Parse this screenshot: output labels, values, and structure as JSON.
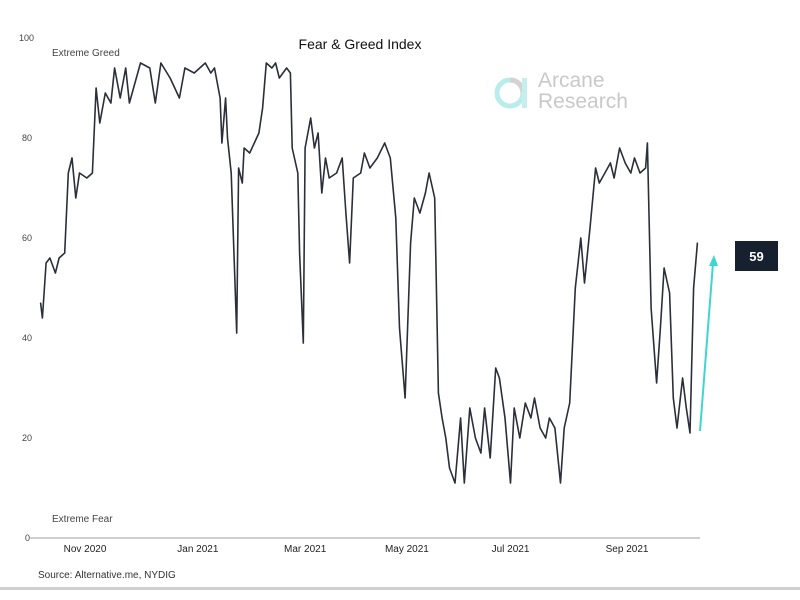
{
  "chart_data": {
    "type": "line",
    "title": "Fear & Greed Index",
    "xlabel": "",
    "ylabel": "",
    "ylim": [
      0,
      100
    ],
    "y_ticks": [
      0,
      20,
      40,
      60,
      80,
      100
    ],
    "x_unit": "days since 2020-11-01 (approx.)",
    "x_ticks": [
      {
        "label": "Nov 2020",
        "x": 0
      },
      {
        "label": "Jan 2021",
        "x": 61
      },
      {
        "label": "Mar 2021",
        "x": 119
      },
      {
        "label": "May 2021",
        "x": 174
      },
      {
        "label": "Jul 2021",
        "x": 230
      },
      {
        "label": "Sep 2021",
        "x": 293
      }
    ],
    "zone_labels": {
      "top": "Extreme Greed",
      "bottom": "Extreme Fear"
    },
    "series": [
      {
        "name": "Fear & Greed Index",
        "color": "#2a2f3a",
        "x": [
          -24,
          -23,
          -21,
          -19,
          -16,
          -14,
          -11,
          -9,
          -7,
          -5,
          -3,
          1,
          4,
          6,
          8,
          11,
          14,
          16,
          19,
          22,
          24,
          30,
          35,
          38,
          41,
          46,
          51,
          54,
          59,
          65,
          68,
          70,
          73,
          74,
          76,
          77,
          79,
          82,
          83,
          85,
          86,
          89,
          94,
          96,
          98,
          101,
          103,
          105,
          109,
          111,
          112,
          115,
          116,
          118,
          119,
          122,
          124,
          126,
          128,
          130,
          132,
          136,
          139,
          141,
          143,
          145,
          149,
          151,
          154,
          158,
          162,
          165,
          168,
          170,
          173,
          176,
          178,
          181,
          184,
          186,
          189,
          191,
          193,
          195,
          197,
          200,
          203,
          205,
          208,
          211,
          214,
          216,
          219,
          222,
          224,
          227,
          230,
          232,
          235,
          238,
          241,
          243,
          246,
          249,
          251,
          254,
          257,
          259,
          262,
          265,
          268,
          270,
          273,
          276,
          278,
          281,
          284,
          286,
          289,
          292,
          295,
          297,
          300,
          303,
          304,
          306,
          309,
          311,
          313,
          316,
          318,
          320,
          323,
          325,
          327,
          329,
          331
        ],
        "y": [
          47,
          44,
          55,
          56,
          53,
          56,
          57,
          73,
          76,
          68,
          73,
          72,
          73,
          90,
          83,
          89,
          87,
          94,
          88,
          94,
          87,
          95,
          94,
          87,
          95,
          92,
          88,
          94,
          93,
          95,
          93,
          94,
          88,
          79,
          88,
          80,
          73,
          41,
          74,
          71,
          78,
          77,
          81,
          86,
          95,
          94,
          95,
          92,
          94,
          93,
          78,
          73,
          57,
          39,
          78,
          84,
          78,
          81,
          69,
          76,
          72,
          73,
          76,
          65,
          55,
          72,
          73,
          77,
          74,
          76,
          79,
          76,
          64,
          42,
          28,
          59,
          68,
          65,
          69,
          73,
          68,
          29,
          24,
          20,
          14,
          11,
          24,
          11,
          26,
          20,
          17,
          26,
          16,
          34,
          32,
          24,
          11,
          26,
          20,
          27,
          24,
          28,
          22,
          20,
          24,
          22,
          11,
          22,
          27,
          50,
          60,
          51,
          62,
          74,
          71,
          73,
          75,
          72,
          78,
          75,
          73,
          76,
          73,
          74,
          79,
          46,
          31,
          42,
          54,
          49,
          28,
          22,
          32,
          26,
          21,
          50,
          59
        ]
      }
    ],
    "annotation": {
      "latest_value": "59",
      "arrow_color": "#3fd6cf"
    }
  },
  "watermark": {
    "line1": "Arcane",
    "line2": "Research"
  },
  "source": "Source: Alternative.me, NYDIG"
}
